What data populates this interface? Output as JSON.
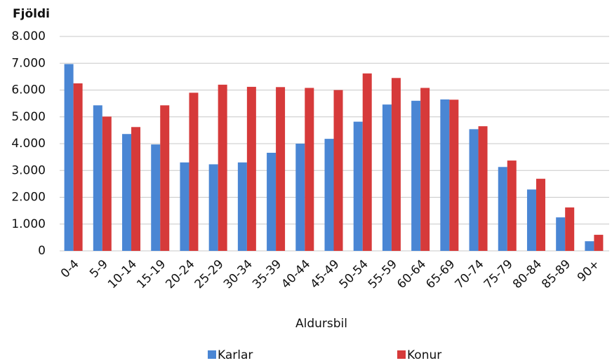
{
  "chart_data": {
    "type": "bar",
    "ylabel": "Fjöldi",
    "xlabel": "Aldursbil",
    "categories": [
      "0-4",
      "5-9",
      "10-14",
      "15-19",
      "20-24",
      "25-29",
      "30-34",
      "35-39",
      "40-44",
      "45-49",
      "50-54",
      "55-59",
      "60-64",
      "65-69",
      "70-74",
      "75-79",
      "80-84",
      "85-89",
      "90+"
    ],
    "series": [
      {
        "name": "Karlar",
        "color": "#4a86d4",
        "values": [
          6970,
          5430,
          4360,
          3970,
          3300,
          3230,
          3300,
          3660,
          4000,
          4180,
          4820,
          5460,
          5600,
          5650,
          4540,
          3130,
          2290,
          1250,
          360
        ]
      },
      {
        "name": "Konur",
        "color": "#d63a3a",
        "values": [
          6250,
          5010,
          4620,
          5430,
          5900,
          6200,
          6120,
          6110,
          6080,
          6000,
          6620,
          6450,
          6080,
          5640,
          4650,
          3370,
          2690,
          1620,
          600
        ]
      }
    ],
    "ylim": [
      0,
      8000
    ],
    "yticks": [
      0,
      {
        "value": 1000,
        "label": "1.000"
      },
      {
        "value": 2000,
        "label": "2.000"
      },
      {
        "value": 3000,
        "label": "3.000"
      },
      {
        "value": 4000,
        "label": "4.000"
      },
      {
        "value": 5000,
        "label": "5.000"
      },
      {
        "value": 6000,
        "label": "6.000"
      },
      {
        "value": 7000,
        "label": "7.000"
      },
      {
        "value": 8000,
        "label": "8.000"
      }
    ],
    "grid": true,
    "legend": "bottom"
  }
}
